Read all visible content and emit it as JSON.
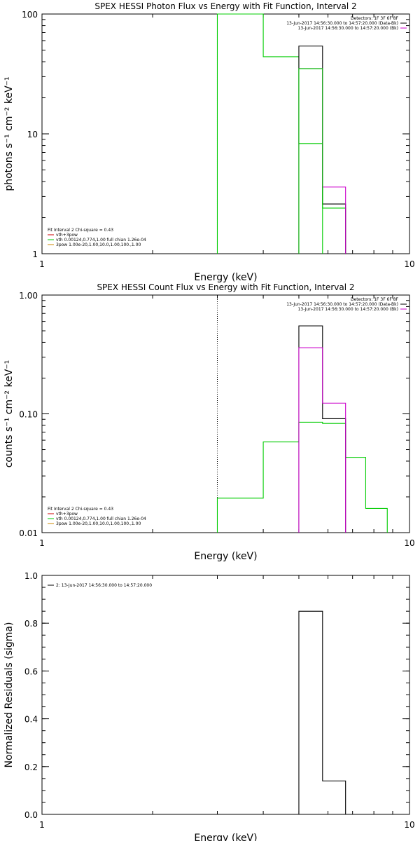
{
  "colors": {
    "black": "#000000",
    "green": "#00cc00",
    "magenta": "#cc00cc",
    "orange": "#cc8800",
    "red": "#cc0000"
  },
  "chart_data": [
    {
      "type": "line",
      "title": "SPEX HESSI Photon Flux vs Energy with Fit Function, Interval 2",
      "xlabel": "Energy (keV)",
      "ylabel": "photons s⁻¹ cm⁻² keV⁻¹",
      "xscale": "log",
      "yscale": "log",
      "xlim": [
        1,
        10
      ],
      "ylim": [
        1,
        100
      ],
      "xticks": [
        {
          "v": 1,
          "label": "1"
        },
        {
          "v": 10,
          "label": "10"
        }
      ],
      "yticks": [
        {
          "v": 1,
          "label": "1"
        },
        {
          "v": 10,
          "label": "10"
        },
        {
          "v": 100,
          "label": "100"
        }
      ],
      "vline": {
        "x": 3,
        "style": "dotted"
      },
      "legend_tr": [
        {
          "text": "Detectors: 1F 3F 6F 8F",
          "color": "#000000"
        },
        {
          "text": "13-Jun-2017 14:56:30.000 to 14:57:20.000 (Data-Bk)",
          "color": "#000000"
        },
        {
          "text": "13-Jun-2017 14:56:30.000 to 14:57:20.000 (Bk)",
          "color": "#cc00cc"
        }
      ],
      "legend_bl": [
        {
          "text": "Fit Interval 2   Chi-square = 0.43",
          "color": "#000000"
        },
        {
          "text": "vth+3pow",
          "color": "#cc0000"
        },
        {
          "text": "vth 0.00124,0.774,1.00  full chian 1.26e-04",
          "color": "#00cc00"
        },
        {
          "text": "3pow 1.00e-20,1.00,10.0,1.00,100.,1.00",
          "color": "#cc8800"
        }
      ],
      "series": [
        {
          "color": "#00cc00",
          "steps": [
            [
              3.0,
              4.0,
              1000
            ],
            [
              4.0,
              5.0,
              44
            ],
            [
              5.0,
              5.8,
              8.3
            ],
            [
              5.8,
              6.7,
              2.4
            ]
          ]
        },
        {
          "color": "#000000",
          "steps": [
            [
              5.0,
              5.8,
              54
            ],
            [
              5.8,
              6.7,
              2.6
            ]
          ]
        },
        {
          "color": "#cc00cc",
          "steps": [
            [
              5.0,
              5.8,
              35
            ],
            [
              5.8,
              6.7,
              3.6
            ]
          ]
        },
        {
          "color": "#00cc00",
          "steps": [
            [
              5.0,
              5.8,
              35
            ]
          ]
        }
      ]
    },
    {
      "type": "line",
      "title": "SPEX HESSI Count Flux vs Energy with Fit Function, Interval 2",
      "xlabel": "Energy (keV)",
      "ylabel": "counts s⁻¹ cm⁻² keV⁻¹",
      "xscale": "log",
      "yscale": "log",
      "xlim": [
        1,
        10
      ],
      "ylim": [
        0.01,
        1.0
      ],
      "xticks": [
        {
          "v": 1,
          "label": "1"
        },
        {
          "v": 10,
          "label": "10"
        }
      ],
      "yticks": [
        {
          "v": 0.01,
          "label": "0.01"
        },
        {
          "v": 0.1,
          "label": "0.10"
        },
        {
          "v": 1.0,
          "label": "1.00"
        }
      ],
      "vline": {
        "x": 3,
        "style": "dotted"
      },
      "legend_tr": [
        {
          "text": "Detectors: 1F 3F 6F 8F",
          "color": "#000000"
        },
        {
          "text": "13-Jun-2017 14:56:30.000 to 14:57:20.000 (Data-Bk)",
          "color": "#000000"
        },
        {
          "text": "13-Jun-2017 14:56:30.000 to 14:57:20.000 (Bk)",
          "color": "#cc00cc"
        }
      ],
      "legend_bl": [
        {
          "text": "Fit Interval 2   Chi-square = 0.43",
          "color": "#000000"
        },
        {
          "text": "vth+3pow",
          "color": "#cc0000"
        },
        {
          "text": "vth 0.00124,0.774,1.00  full chian 1.26e-04",
          "color": "#00cc00"
        },
        {
          "text": "3pow 1.00e-20,1.00,10.0,1.00,100.,1.00",
          "color": "#cc8800"
        }
      ],
      "series": [
        {
          "color": "#00cc00",
          "steps": [
            [
              3.0,
              4.0,
              0.0195
            ],
            [
              4.0,
              5.0,
              0.058
            ],
            [
              5.0,
              5.8,
              0.085
            ],
            [
              5.8,
              6.7,
              0.083
            ],
            [
              6.7,
              7.6,
              0.043
            ],
            [
              7.6,
              8.7,
              0.016
            ]
          ]
        },
        {
          "color": "#000000",
          "steps": [
            [
              5.0,
              5.8,
              0.55
            ],
            [
              5.8,
              6.7,
              0.091
            ]
          ]
        },
        {
          "color": "#cc00cc",
          "steps": [
            [
              5.0,
              5.8,
              0.36
            ],
            [
              5.8,
              6.7,
              0.123
            ]
          ]
        }
      ]
    },
    {
      "type": "line",
      "title": "",
      "xlabel": "Energy (keV)",
      "ylabel": "Normalized Residuals (sigma)",
      "xscale": "log",
      "yscale": "linear",
      "xlim": [
        1,
        10
      ],
      "ylim": [
        0.0,
        1.0
      ],
      "xticks": [
        {
          "v": 1,
          "label": "1"
        },
        {
          "v": 10,
          "label": "10"
        }
      ],
      "yticks": [
        {
          "v": 0.0,
          "label": "0.0"
        },
        {
          "v": 0.2,
          "label": "0.2"
        },
        {
          "v": 0.4,
          "label": "0.4"
        },
        {
          "v": 0.6,
          "label": "0.6"
        },
        {
          "v": 0.8,
          "label": "0.8"
        },
        {
          "v": 1.0,
          "label": "1.0"
        }
      ],
      "legend_tl": [
        {
          "text": "2: 13-Jun-2017 14:56:30.000 to 14:57:20.000",
          "color": "#000000"
        }
      ],
      "series": [
        {
          "color": "#000000",
          "steps": [
            [
              5.0,
              5.8,
              0.85
            ],
            [
              5.8,
              6.7,
              0.14
            ]
          ]
        }
      ]
    }
  ]
}
